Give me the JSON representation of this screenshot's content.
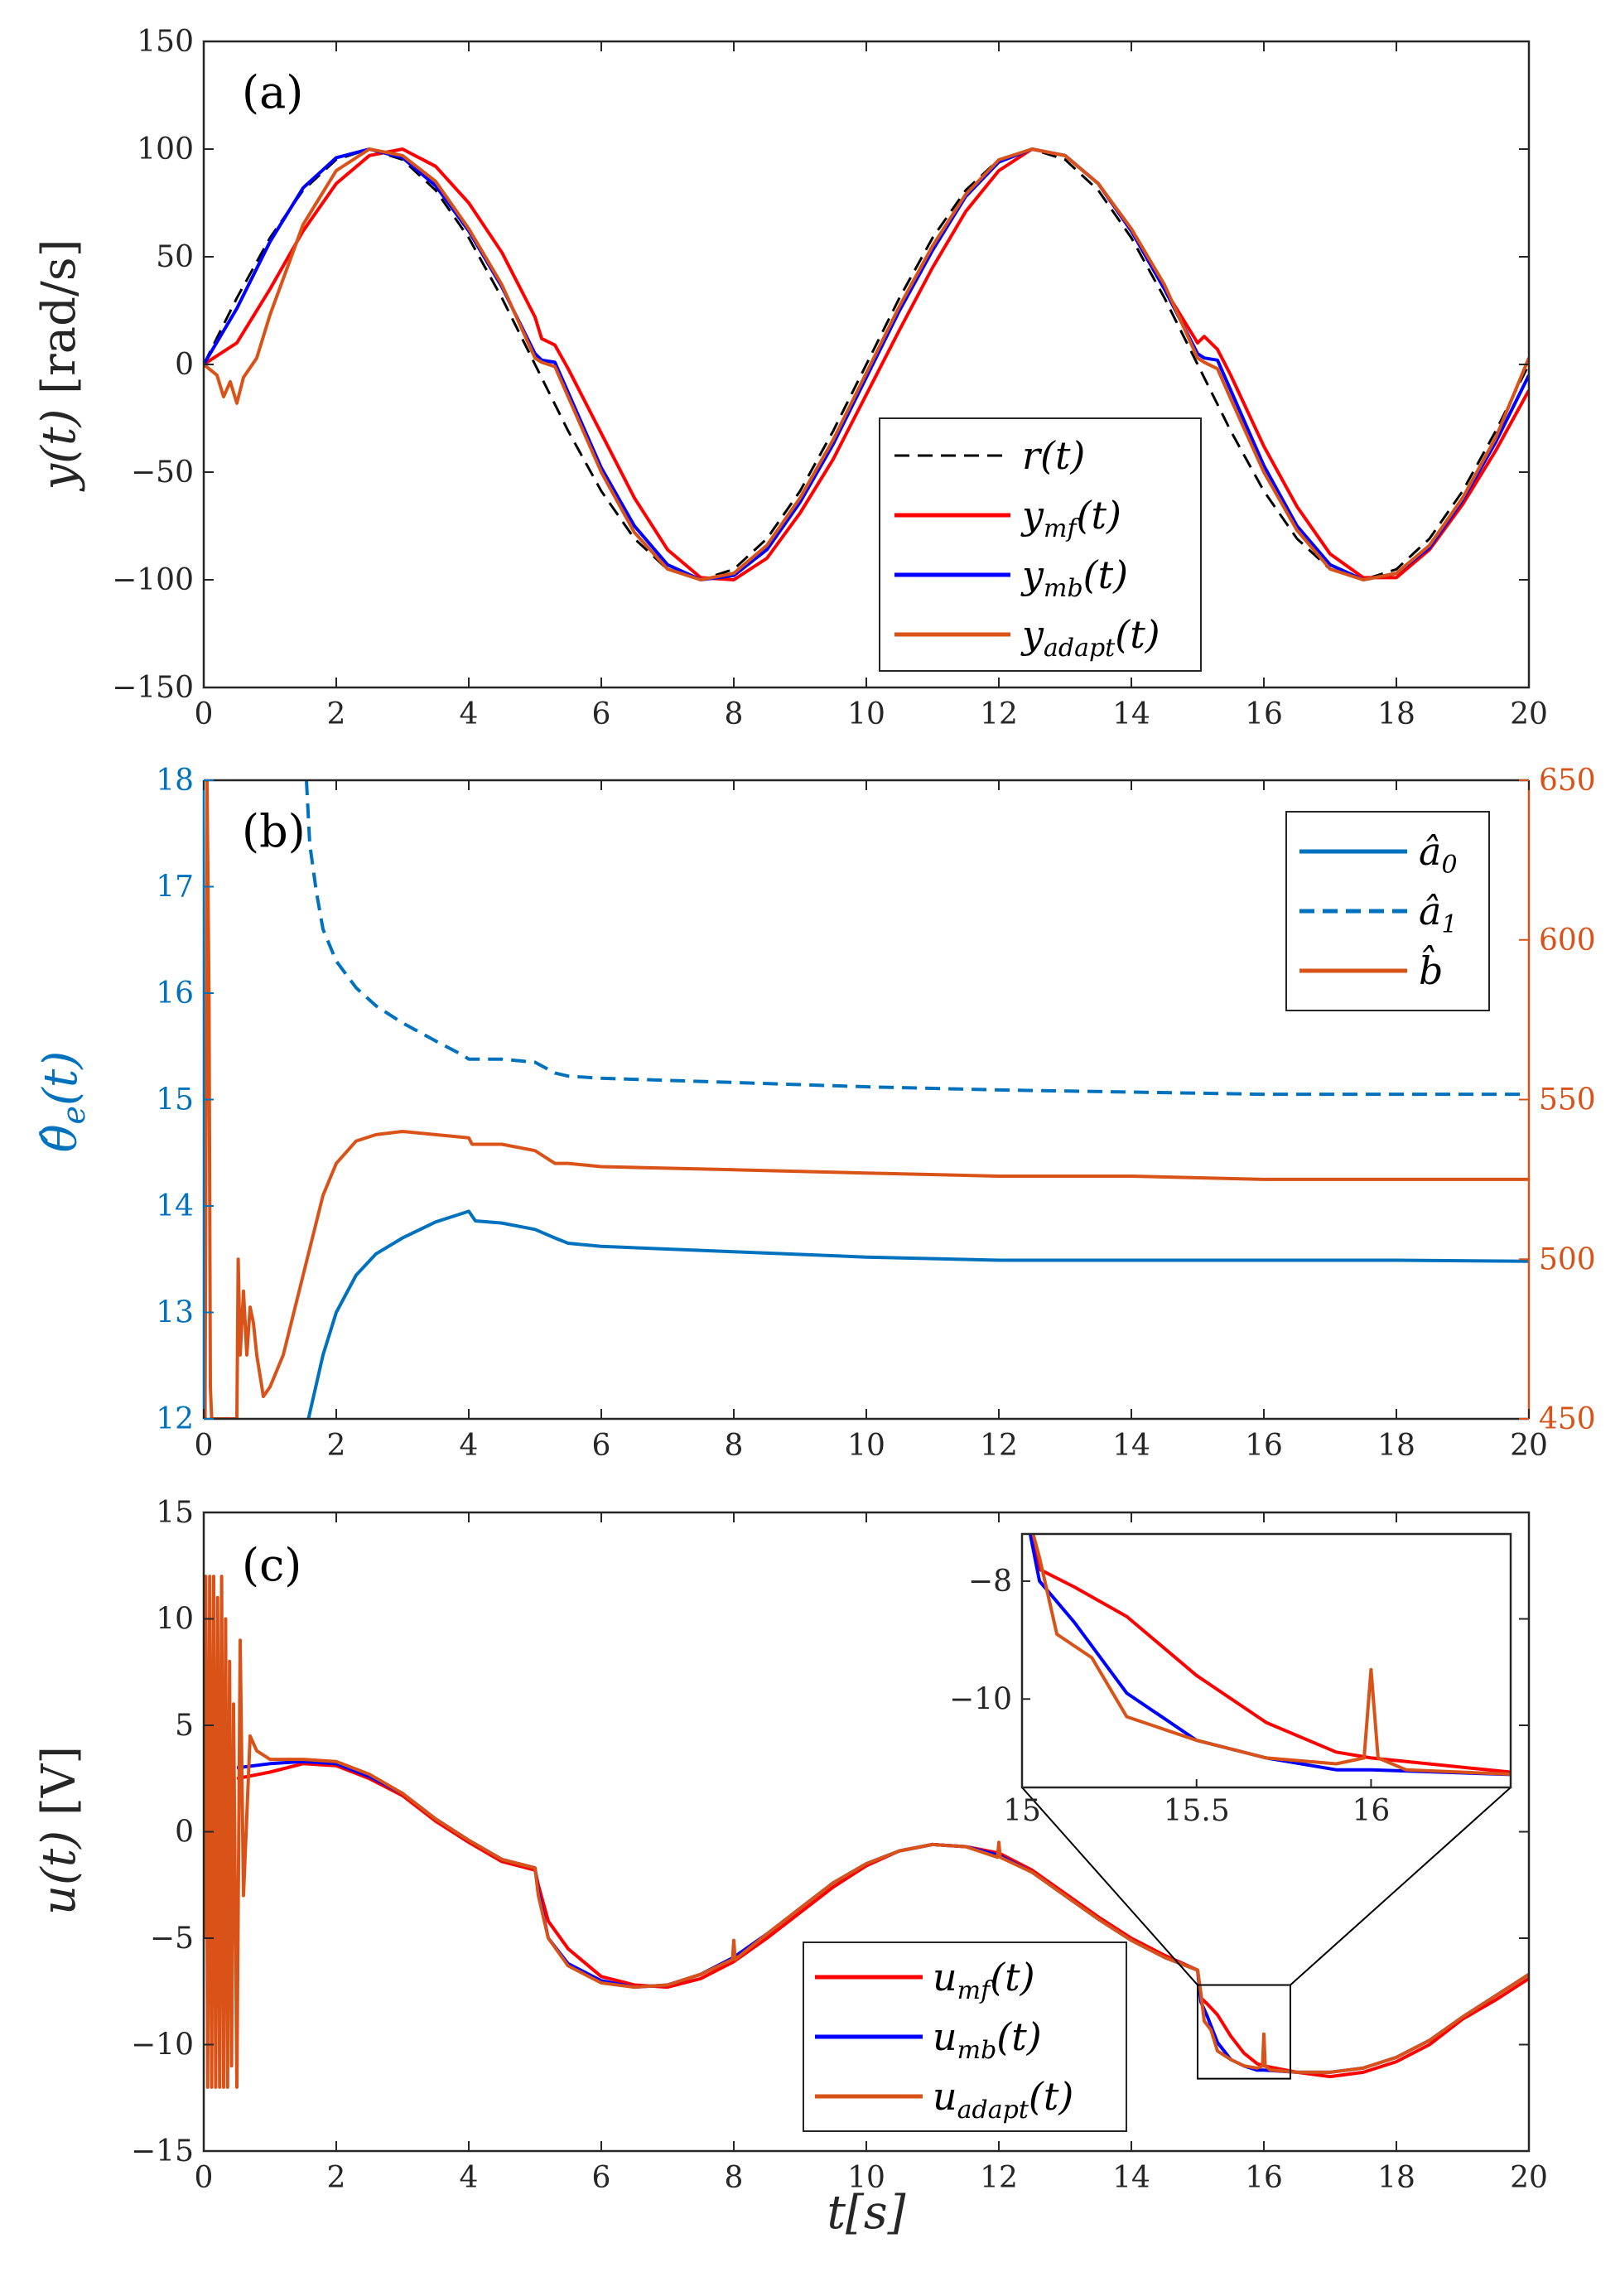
{
  "chart_data": [
    {
      "type": "line",
      "panel": "(a)",
      "ylabel": "y(t) [rad/s]",
      "ylabel_main": "y(t)",
      "ylabel_unit": "[rad/s]",
      "xlim": [
        0,
        20
      ],
      "ylim": [
        -150,
        150
      ],
      "x_ticks": [
        "0",
        "2",
        "4",
        "6",
        "8",
        "10",
        "12",
        "14",
        "16",
        "18",
        "20"
      ],
      "y_ticks": [
        "150",
        "100",
        "50",
        "0",
        "−50",
        "−100",
        "−150"
      ],
      "legend_position": "lower-center-right",
      "series": [
        {
          "name": "r(t)",
          "base": "r",
          "sub": "",
          "color": "#000000",
          "style": "dashed",
          "x": [
            0,
            0.5,
            1,
            1.5,
            2,
            2.5,
            3,
            3.5,
            4,
            4.5,
            5,
            5.5,
            6,
            6.5,
            7,
            7.5,
            8,
            8.5,
            9,
            9.5,
            10,
            10.5,
            11,
            11.5,
            12,
            12.5,
            13,
            13.5,
            14,
            14.5,
            15,
            15.5,
            16,
            16.5,
            17,
            17.5,
            18,
            18.5,
            19,
            19.5,
            20
          ],
          "y": [
            0,
            30.9,
            58.8,
            80.9,
            95.1,
            100,
            95.1,
            80.9,
            58.8,
            30.9,
            0,
            -30.9,
            -58.8,
            -80.9,
            -95.1,
            -100,
            -95.1,
            -80.9,
            -58.8,
            -30.9,
            0,
            30.9,
            58.8,
            80.9,
            95.1,
            100,
            95.1,
            80.9,
            58.8,
            30.9,
            0,
            -30.9,
            -58.8,
            -80.9,
            -95.1,
            -100,
            -95.1,
            -80.9,
            -58.8,
            -30.9,
            0
          ]
        },
        {
          "name": "y_mf(t)",
          "base": "y",
          "sub": "mf",
          "color": "#ff0000",
          "style": "solid",
          "x": [
            0,
            0.5,
            1,
            1.5,
            2,
            2.5,
            3,
            3.5,
            4,
            4.5,
            5,
            5.1,
            5.3,
            5.5,
            6,
            6.5,
            7,
            7.5,
            8,
            8.5,
            9,
            9.5,
            10,
            10.5,
            11,
            11.5,
            12,
            12.5,
            13,
            13.5,
            14,
            14.5,
            15,
            15.1,
            15.3,
            15.5,
            16,
            16.5,
            17,
            17.5,
            18,
            18.5,
            19,
            19.5,
            20
          ],
          "y": [
            0,
            10,
            35,
            62,
            84,
            97,
            100,
            92,
            75,
            52,
            22,
            12,
            9,
            -2,
            -32,
            -62,
            -86,
            -99,
            -100,
            -90,
            -69,
            -44,
            -14,
            16,
            45,
            71,
            90,
            100,
            97,
            84,
            62,
            35,
            10,
            13,
            7,
            -5,
            -38,
            -66,
            -88,
            -99,
            -99,
            -86,
            -65,
            -40,
            -12
          ]
        },
        {
          "name": "y_mb(t)",
          "base": "y",
          "sub": "mb",
          "color": "#0000ff",
          "style": "solid",
          "x": [
            0,
            0.5,
            1,
            1.5,
            2,
            2.5,
            3,
            3.5,
            4,
            4.5,
            5,
            5.1,
            5.3,
            5.5,
            6,
            6.5,
            7,
            7.5,
            8,
            8.5,
            9,
            9.5,
            10,
            10.5,
            11,
            11.5,
            12,
            12.5,
            13,
            13.5,
            14,
            14.5,
            15,
            15.1,
            15.3,
            15.5,
            16,
            16.5,
            17,
            17.5,
            18,
            18.5,
            19,
            19.5,
            20
          ],
          "y": [
            0,
            26,
            57,
            82,
            96,
            100,
            96,
            83,
            62,
            36,
            5,
            2,
            1,
            -13,
            -48,
            -75,
            -93,
            -100,
            -98,
            -86,
            -64,
            -37,
            -6,
            25,
            53,
            78,
            94,
            100,
            97,
            84,
            62,
            35,
            5,
            3,
            2,
            -12,
            -47,
            -75,
            -93,
            -100,
            -97,
            -85,
            -63,
            -36,
            -5
          ]
        },
        {
          "name": "y_adapt(t)",
          "base": "y",
          "sub": "adapt",
          "color": "#d95319",
          "style": "solid",
          "x": [
            0,
            0.2,
            0.3,
            0.4,
            0.5,
            0.6,
            0.8,
            1,
            1.5,
            2,
            2.5,
            3,
            3.5,
            4,
            4.5,
            5,
            5.1,
            5.3,
            5.5,
            6,
            6.5,
            7,
            7.5,
            8,
            8.5,
            9,
            9.5,
            10,
            10.5,
            11,
            11.5,
            12,
            12.5,
            13,
            13.5,
            14,
            14.5,
            15,
            15.1,
            15.3,
            15.5,
            16,
            16.5,
            17,
            17.5,
            18,
            18.5,
            19,
            19.5,
            20
          ],
          "y": [
            0,
            -5,
            -15,
            -8,
            -18,
            -6,
            3,
            23,
            65,
            90,
            100,
            97,
            85,
            63,
            37,
            3,
            1,
            -1,
            -15,
            -50,
            -78,
            -95,
            -100,
            -97,
            -84,
            -62,
            -35,
            -4,
            27,
            55,
            79,
            95,
            100,
            97,
            84,
            63,
            37,
            3,
            1,
            -2,
            -16,
            -50,
            -77,
            -95,
            -100,
            -97,
            -84,
            -62,
            -34,
            3
          ]
        }
      ]
    },
    {
      "type": "line",
      "panel": "(b)",
      "ylabel": "θ̂e(t)",
      "ylabel_main": "θ̂",
      "ylabel_sub": "e",
      "ylabel_arg": "(t)",
      "xlim": [
        0,
        20
      ],
      "ylim_left": [
        12,
        18
      ],
      "ylim_right": [
        450,
        650
      ],
      "x_ticks": [
        "0",
        "2",
        "4",
        "6",
        "8",
        "10",
        "12",
        "14",
        "16",
        "18",
        "20"
      ],
      "y_ticks_left": [
        "18",
        "17",
        "16",
        "15",
        "14",
        "13",
        "12"
      ],
      "y_ticks_right": [
        "650",
        "600",
        "550",
        "500",
        "450"
      ],
      "left_axis_color": "#0072bd",
      "right_axis_color": "#d95319",
      "legend_position": "top-right",
      "series": [
        {
          "name": "â0",
          "base": "â",
          "sub": "0",
          "axis": "left",
          "color": "#0072bd",
          "style": "solid",
          "x": [
            1.58,
            1.8,
            2,
            2.3,
            2.6,
            3,
            3.5,
            3.9,
            4,
            4.1,
            4.5,
            5,
            5.3,
            5.5,
            6,
            8,
            10,
            12,
            14,
            16,
            18,
            20
          ],
          "y": [
            12,
            12.6,
            13.0,
            13.35,
            13.55,
            13.7,
            13.85,
            13.93,
            13.95,
            13.86,
            13.84,
            13.78,
            13.7,
            13.65,
            13.62,
            13.57,
            13.52,
            13.49,
            13.49,
            13.49,
            13.49,
            13.48
          ]
        },
        {
          "name": "â1",
          "base": "â",
          "sub": "1",
          "axis": "left",
          "color": "#0072bd",
          "style": "dashed",
          "x": [
            1.55,
            1.6,
            1.7,
            1.8,
            2,
            2.3,
            2.6,
            3,
            3.5,
            3.9,
            4,
            4.5,
            5,
            5.3,
            5.5,
            6,
            8,
            10,
            12,
            14,
            16,
            18,
            20
          ],
          "y": [
            18,
            17.4,
            16.95,
            16.6,
            16.3,
            16.05,
            15.88,
            15.72,
            15.55,
            15.42,
            15.38,
            15.38,
            15.35,
            15.25,
            15.22,
            15.2,
            15.16,
            15.12,
            15.09,
            15.07,
            15.05,
            15.05,
            15.05
          ]
        },
        {
          "name": "b̂",
          "base": "b",
          "sub": "",
          "axis": "right",
          "color": "#d95319",
          "style": "solid",
          "x": [
            0.02,
            0.05,
            0.08,
            0.1,
            0.12,
            0.5,
            0.52,
            0.55,
            0.6,
            0.65,
            0.7,
            0.75,
            0.8,
            0.9,
            1,
            1.2,
            1.5,
            1.8,
            2,
            2.3,
            2.6,
            3,
            3.5,
            4,
            4.05,
            4.5,
            5,
            5.3,
            5.5,
            6,
            8,
            10,
            12,
            14,
            16,
            18,
            20
          ],
          "y": [
            450,
            650,
            580,
            460,
            450,
            450,
            500,
            470,
            490,
            470,
            485,
            480,
            470,
            457,
            460,
            470,
            495,
            520,
            530,
            537,
            539,
            540,
            539,
            538,
            536,
            536,
            534,
            530,
            530,
            529,
            528,
            527,
            526,
            526,
            525,
            525,
            525
          ]
        }
      ]
    },
    {
      "type": "line",
      "panel": "(c)",
      "ylabel": "u(t) [V]",
      "ylabel_main": "u(t)",
      "ylabel_unit": "[V]",
      "xlabel": "t[s]",
      "xlabel_main": "t",
      "xlabel_unit": "[s]",
      "xlim": [
        0,
        20
      ],
      "ylim": [
        -15,
        15
      ],
      "x_ticks": [
        "0",
        "2",
        "4",
        "6",
        "8",
        "10",
        "12",
        "14",
        "16",
        "18",
        "20"
      ],
      "y_ticks": [
        "15",
        "10",
        "5",
        "0",
        "−5",
        "−10",
        "−15"
      ],
      "legend_position": "lower-center-right",
      "zoom_box": {
        "x": [
          15,
          16.4
        ],
        "y": [
          -11.6,
          -7.2
        ]
      },
      "inset": {
        "xlim": [
          15,
          16.4
        ],
        "ylim": [
          -11.5,
          -7.2
        ],
        "x_ticks": [
          "15",
          "15.5",
          "16"
        ],
        "y_ticks": [
          "−8",
          "−10"
        ]
      },
      "series": [
        {
          "name": "u_mf(t)",
          "base": "u",
          "sub": "mf",
          "color": "#ff0000",
          "style": "solid",
          "x": [
            0.5,
            1,
            1.5,
            2,
            2.5,
            3,
            3.5,
            4,
            4.5,
            5,
            5.05,
            5.2,
            5.5,
            6,
            6.5,
            7,
            7.5,
            8,
            8.5,
            9,
            9.5,
            10,
            10.5,
            11,
            11.5,
            12,
            12.5,
            13,
            13.5,
            14,
            14.5,
            15,
            15.05,
            15.15,
            15.3,
            15.5,
            15.7,
            15.9,
            16,
            16.5,
            17,
            17.5,
            18,
            18.5,
            19,
            19.5,
            20
          ],
          "y": [
            2.5,
            2.8,
            3.2,
            3.1,
            2.5,
            1.7,
            0.5,
            -0.5,
            -1.4,
            -1.8,
            -2.5,
            -4.2,
            -5.5,
            -6.8,
            -7.2,
            -7.3,
            -6.9,
            -6.1,
            -5.0,
            -3.8,
            -2.6,
            -1.6,
            -0.9,
            -0.6,
            -0.7,
            -1.0,
            -1.8,
            -2.9,
            -4.0,
            -5.0,
            -5.8,
            -6.5,
            -7.8,
            -8.1,
            -8.6,
            -9.6,
            -10.4,
            -10.9,
            -11.0,
            -11.3,
            -11.5,
            -11.3,
            -10.8,
            -10.0,
            -8.8,
            -7.9,
            -6.9
          ]
        },
        {
          "name": "u_mb(t)",
          "base": "u",
          "sub": "mb",
          "color": "#0000ff",
          "style": "solid",
          "x": [
            0.5,
            1,
            1.5,
            2,
            2.5,
            3,
            3.5,
            4,
            4.5,
            5,
            5.05,
            5.2,
            5.5,
            6,
            6.5,
            7,
            7.5,
            8,
            8.5,
            9,
            9.5,
            10,
            10.5,
            11,
            11.5,
            12,
            12.5,
            13,
            13.5,
            14,
            14.5,
            15,
            15.05,
            15.15,
            15.3,
            15.5,
            15.7,
            15.9,
            16,
            16.5,
            17,
            17.5,
            18,
            18.5,
            19,
            19.5,
            20
          ],
          "y": [
            3.0,
            3.2,
            3.3,
            3.2,
            2.6,
            1.8,
            0.6,
            -0.4,
            -1.3,
            -1.7,
            -2.8,
            -5.0,
            -6.2,
            -7.0,
            -7.3,
            -7.2,
            -6.7,
            -5.9,
            -4.8,
            -3.6,
            -2.4,
            -1.5,
            -0.9,
            -0.6,
            -0.7,
            -1.1,
            -1.9,
            -3.0,
            -4.1,
            -5.1,
            -5.9,
            -6.5,
            -8.0,
            -8.7,
            -9.9,
            -10.7,
            -11.0,
            -11.2,
            -11.2,
            -11.3,
            -11.3,
            -11.1,
            -10.6,
            -9.8,
            -8.7,
            -7.7,
            -6.7
          ]
        },
        {
          "name": "u_adapt(t)",
          "base": "u",
          "sub": "adapt",
          "color": "#d95319",
          "style": "solid",
          "x": [
            0,
            0.03,
            0.06,
            0.09,
            0.12,
            0.15,
            0.18,
            0.21,
            0.24,
            0.27,
            0.3,
            0.33,
            0.36,
            0.39,
            0.42,
            0.45,
            0.5,
            0.55,
            0.6,
            0.7,
            0.8,
            1,
            1.5,
            2,
            2.5,
            3,
            3.5,
            4,
            4.5,
            5,
            5.05,
            5.2,
            5.5,
            6,
            6.5,
            7,
            7.5,
            7.98,
            8.0,
            8.02,
            8.5,
            9,
            9.5,
            10,
            10.5,
            11,
            11.5,
            11.98,
            12.0,
            12.02,
            12.5,
            13,
            13.5,
            14,
            14.5,
            15,
            15.05,
            15.1,
            15.2,
            15.3,
            15.5,
            15.7,
            15.9,
            15.98,
            16.0,
            16.02,
            16.1,
            16.5,
            17,
            17.5,
            18,
            18.5,
            19,
            19.5,
            20
          ],
          "y": [
            -5,
            12,
            -12,
            12,
            -12,
            12,
            -12,
            11,
            -12,
            12,
            -12,
            10,
            -12,
            8,
            -11,
            6,
            -12,
            9,
            -3,
            4.5,
            3.8,
            3.4,
            3.4,
            3.3,
            2.7,
            1.8,
            0.6,
            -0.4,
            -1.3,
            -1.7,
            -3.0,
            -5.0,
            -6.3,
            -7.1,
            -7.3,
            -7.2,
            -6.7,
            -6.0,
            -5.1,
            -6.0,
            -4.8,
            -3.6,
            -2.4,
            -1.5,
            -0.9,
            -0.6,
            -0.7,
            -1.2,
            -0.5,
            -1.2,
            -1.9,
            -3.0,
            -4.1,
            -5.1,
            -5.9,
            -6.5,
            -7.6,
            -8.9,
            -9.3,
            -10.3,
            -10.7,
            -11.0,
            -11.1,
            -11.0,
            -9.5,
            -11.0,
            -11.2,
            -11.3,
            -11.3,
            -11.1,
            -10.6,
            -9.8,
            -8.7,
            -7.7,
            -6.7
          ]
        }
      ]
    }
  ]
}
